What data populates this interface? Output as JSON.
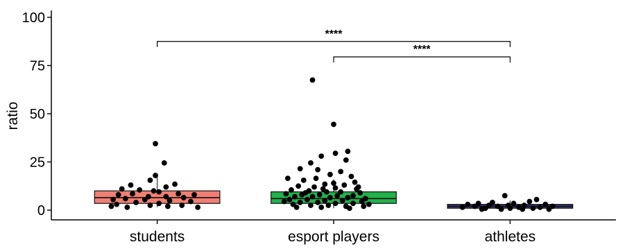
{
  "chart_data": {
    "type": "box",
    "xlabel": "",
    "ylabel": "ratio",
    "ylim": [
      -2,
      103
    ],
    "yticks": [
      0,
      25,
      50,
      75,
      100
    ],
    "categories": [
      "students",
      "esport players",
      "athletes"
    ],
    "boxes": [
      {
        "name": "students",
        "color": "#F07F73",
        "q1": 3.5,
        "median": 6.5,
        "q3": 10.0,
        "whisker_low": 1.5,
        "whisker_high": 18.0,
        "points": [
          [
            0.99,
            34.5
          ],
          [
            1.04,
            24.5
          ],
          [
            0.99,
            18.0
          ],
          [
            0.96,
            15.5
          ],
          [
            0.85,
            13.0
          ],
          [
            1.05,
            12.0
          ],
          [
            1.1,
            13.5
          ],
          [
            0.8,
            11.0
          ],
          [
            0.9,
            10.5
          ],
          [
            0.98,
            10.0
          ],
          [
            1.01,
            9.5
          ],
          [
            1.12,
            8.5
          ],
          [
            1.21,
            8.0
          ],
          [
            0.78,
            8.0
          ],
          [
            0.86,
            8.5
          ],
          [
            0.95,
            7.0
          ],
          [
            1.05,
            7.0
          ],
          [
            1.15,
            6.5
          ],
          [
            0.75,
            5.5
          ],
          [
            0.82,
            6.0
          ],
          [
            0.93,
            5.5
          ],
          [
            1.07,
            5.0
          ],
          [
            1.19,
            4.5
          ],
          [
            0.88,
            4.0
          ],
          [
            1.01,
            3.5
          ],
          [
            0.77,
            3.0
          ],
          [
            0.96,
            2.5
          ],
          [
            1.14,
            2.5
          ],
          [
            0.74,
            2.0
          ],
          [
            1.23,
            1.5
          ],
          [
            0.83,
            1.5
          ],
          [
            1.06,
            2.0
          ]
        ]
      },
      {
        "name": "esport players",
        "color": "#22B14C",
        "q1": 3.5,
        "median": 6.0,
        "q3": 9.5,
        "whisker_low": 1.0,
        "whisker_high": 16.0,
        "points": [
          [
            1.88,
            67.5
          ],
          [
            2.0,
            44.5
          ],
          [
            2.08,
            30.5
          ],
          [
            2.01,
            29.5
          ],
          [
            1.93,
            28.0
          ],
          [
            2.07,
            26.0
          ],
          [
            1.87,
            24.5
          ],
          [
            1.81,
            21.5
          ],
          [
            1.91,
            21.0
          ],
          [
            2.04,
            20.0
          ],
          [
            1.98,
            18.5
          ],
          [
            2.1,
            17.5
          ],
          [
            1.74,
            16.5
          ],
          [
            1.83,
            15.5
          ],
          [
            2.12,
            14.5
          ],
          [
            1.95,
            13.5
          ],
          [
            2.06,
            13.0
          ],
          [
            1.8,
            12.5
          ],
          [
            1.89,
            12.0
          ],
          [
            2.01,
            11.5
          ],
          [
            2.13,
            11.0
          ],
          [
            1.76,
            10.5
          ],
          [
            1.86,
            10.0
          ],
          [
            1.96,
            9.5
          ],
          [
            2.04,
            9.5
          ],
          [
            2.15,
            9.0
          ],
          [
            1.73,
            8.5
          ],
          [
            1.82,
            8.0
          ],
          [
            1.92,
            8.0
          ],
          [
            2.02,
            7.5
          ],
          [
            2.11,
            7.5
          ],
          [
            1.78,
            7.0
          ],
          [
            1.88,
            7.0
          ],
          [
            1.98,
            6.5
          ],
          [
            2.08,
            6.5
          ],
          [
            2.18,
            6.0
          ],
          [
            1.75,
            5.5
          ],
          [
            1.85,
            5.5
          ],
          [
            1.95,
            5.0
          ],
          [
            2.05,
            5.0
          ],
          [
            2.16,
            4.5
          ],
          [
            1.72,
            4.5
          ],
          [
            1.81,
            4.0
          ],
          [
            1.91,
            4.0
          ],
          [
            2.01,
            3.5
          ],
          [
            2.11,
            3.5
          ],
          [
            2.2,
            3.0
          ],
          [
            1.77,
            3.0
          ],
          [
            1.87,
            2.5
          ],
          [
            1.97,
            2.5
          ],
          [
            2.07,
            2.0
          ],
          [
            2.17,
            2.0
          ],
          [
            1.79,
            1.5
          ],
          [
            1.93,
            1.5
          ],
          [
            2.09,
            1.0
          ],
          [
            1.84,
            9.0
          ],
          [
            2.0,
            14.0
          ],
          [
            1.9,
            16.5
          ],
          [
            2.14,
            12.0
          ],
          [
            1.94,
            11.0
          ]
        ]
      },
      {
        "name": "athletes",
        "color": "#3B3B7A",
        "q1": 1.0,
        "median": 2.0,
        "q3": 3.0,
        "whisker_low": 0.5,
        "whisker_high": 5.0,
        "points": [
          [
            2.97,
            7.5
          ],
          [
            3.15,
            5.5
          ],
          [
            3.11,
            4.5
          ],
          [
            2.9,
            4.0
          ],
          [
            2.82,
            3.5
          ],
          [
            3.02,
            3.5
          ],
          [
            3.2,
            3.0
          ],
          [
            2.76,
            3.0
          ],
          [
            2.88,
            2.5
          ],
          [
            2.99,
            2.5
          ],
          [
            3.08,
            2.5
          ],
          [
            3.24,
            2.0
          ],
          [
            2.8,
            2.0
          ],
          [
            2.93,
            2.0
          ],
          [
            3.05,
            1.5
          ],
          [
            3.17,
            1.5
          ],
          [
            2.73,
            1.5
          ],
          [
            2.86,
            1.0
          ],
          [
            3.0,
            1.0
          ],
          [
            3.13,
            1.0
          ],
          [
            3.22,
            0.5
          ],
          [
            2.95,
            0.5
          ],
          [
            3.07,
            0.5
          ],
          [
            2.84,
            0.5
          ]
        ]
      }
    ],
    "annotations": [
      {
        "from": "students",
        "to": "athletes",
        "y": 87.5,
        "label": "****"
      },
      {
        "from": "esport players",
        "to": "athletes",
        "y": 79.5,
        "label": "****"
      }
    ],
    "grid": false,
    "legend": "none"
  }
}
